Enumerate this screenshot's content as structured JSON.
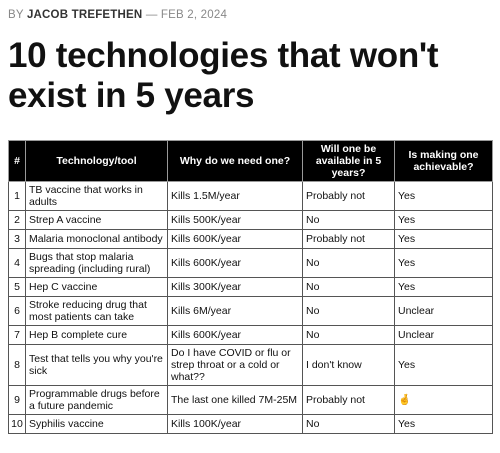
{
  "byline": {
    "prefix": "BY",
    "author": "JACOB TREFETHEN",
    "separator": "—",
    "date": "FEB 2, 2024"
  },
  "title": "10 technologies that won't exist in 5 years",
  "table": {
    "header": [
      "#",
      "Technology/tool",
      "Why do we need one?",
      "Will one be available in 5 years?",
      "Is making one achievable?"
    ],
    "rows": [
      [
        "1",
        "TB vaccine that works in adults",
        "Kills 1.5M/year",
        "Probably not",
        "Yes"
      ],
      [
        "2",
        "Strep A vaccine",
        "Kills 500K/year",
        "No",
        "Yes"
      ],
      [
        "3",
        "Malaria monoclonal antibody",
        "Kills 600K/year",
        "Probably not",
        "Yes"
      ],
      [
        "4",
        "Bugs that stop malaria spreading (including rural)",
        "Kills 600K/year",
        "No",
        "Yes"
      ],
      [
        "5",
        "Hep C vaccine",
        "Kills 300K/year",
        "No",
        "Yes"
      ],
      [
        "6",
        "Stroke reducing drug that most patients can take",
        "Kills 6M/year",
        "No",
        "Unclear"
      ],
      [
        "7",
        "Hep B complete cure",
        "Kills 600K/year",
        "No",
        "Unclear"
      ],
      [
        "8",
        "Test that tells you why you're sick",
        "Do I have COVID or flu or strep throat or a cold or what??",
        "I don't know",
        "Yes"
      ],
      [
        "9",
        "Programmable drugs before a future pandemic",
        "The last one killed 7M-25M",
        "Probably not",
        "🤞"
      ],
      [
        "10",
        "Syphilis vaccine",
        "Kills 100K/year",
        "No",
        "Yes"
      ]
    ]
  }
}
